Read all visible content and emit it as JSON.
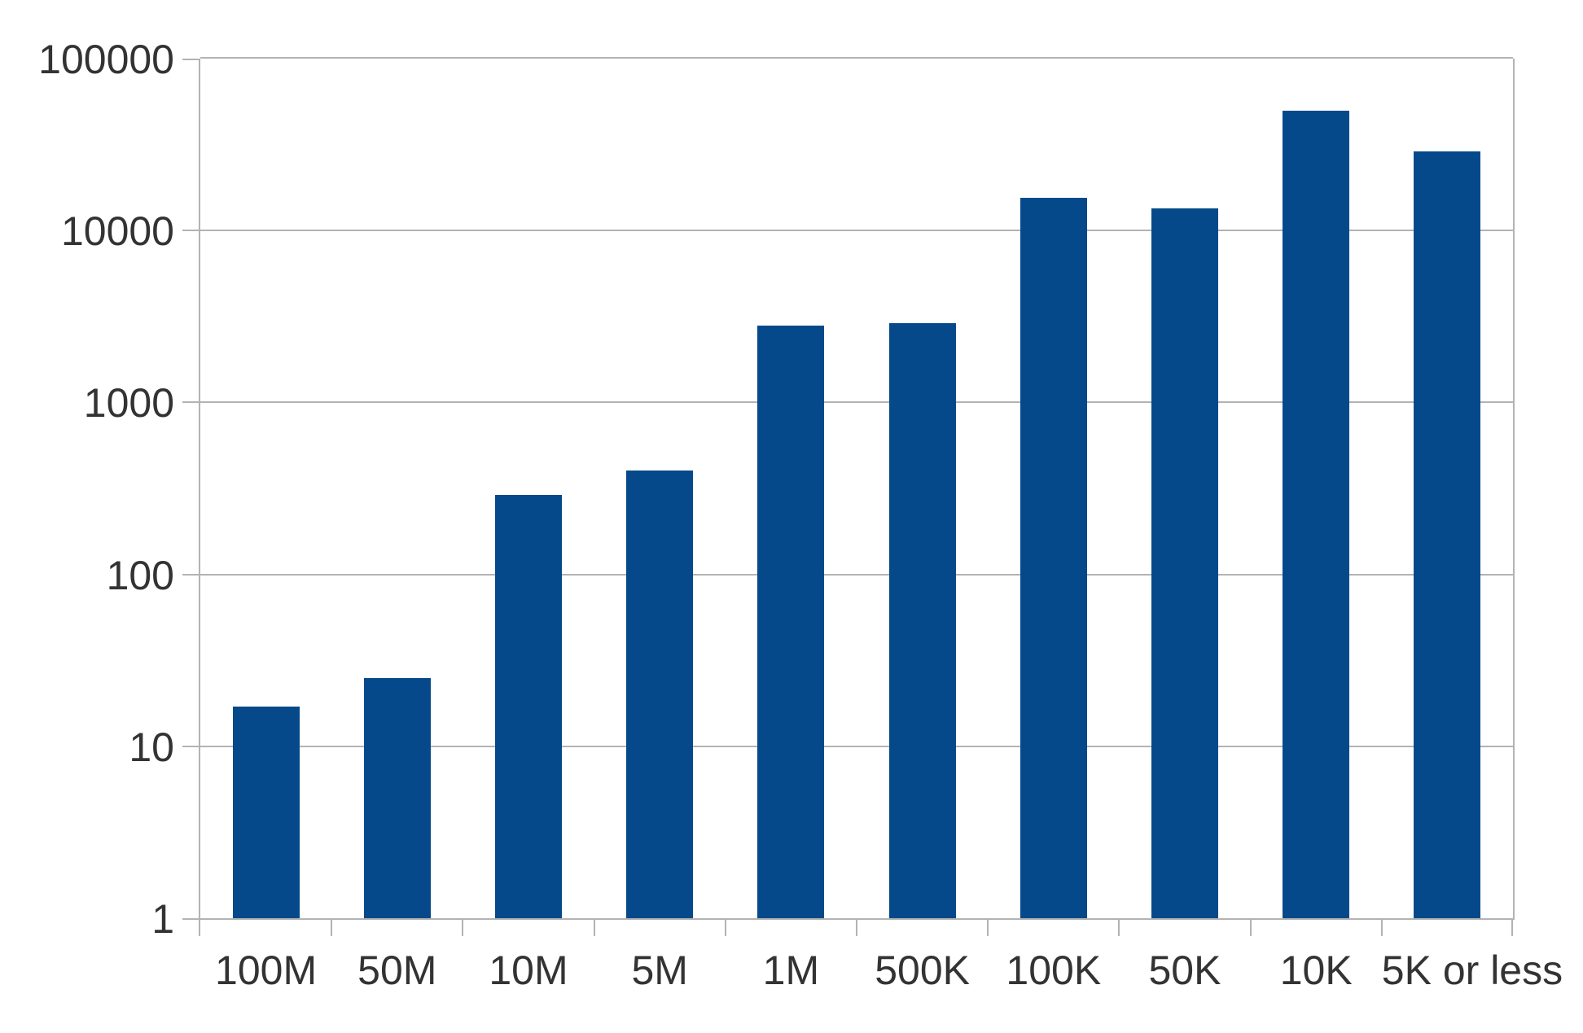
{
  "chart_data": {
    "type": "bar",
    "title": "",
    "xlabel": "",
    "ylabel": "",
    "scale": "log10",
    "categories": [
      "100M",
      "50M",
      "10M",
      "5M",
      "1M",
      "500K",
      "100K",
      "50K",
      "10K",
      "5K or less"
    ],
    "values": [
      17,
      25,
      290,
      400,
      2800,
      2900,
      15500,
      13400,
      50000,
      29000
    ],
    "y_ticks": [
      1,
      10,
      100,
      1000,
      10000,
      100000
    ],
    "y_tick_labels": [
      "1",
      "10",
      "100",
      "1000",
      "10000",
      "100000"
    ],
    "ylim": [
      1,
      100000
    ],
    "grid": "horizontal-major",
    "legend": "none",
    "colors": {
      "bar": "#05498a",
      "grid": "#b3b3b3",
      "axis": "#b3b3b3",
      "text": "#333333",
      "background": "#ffffff"
    }
  }
}
